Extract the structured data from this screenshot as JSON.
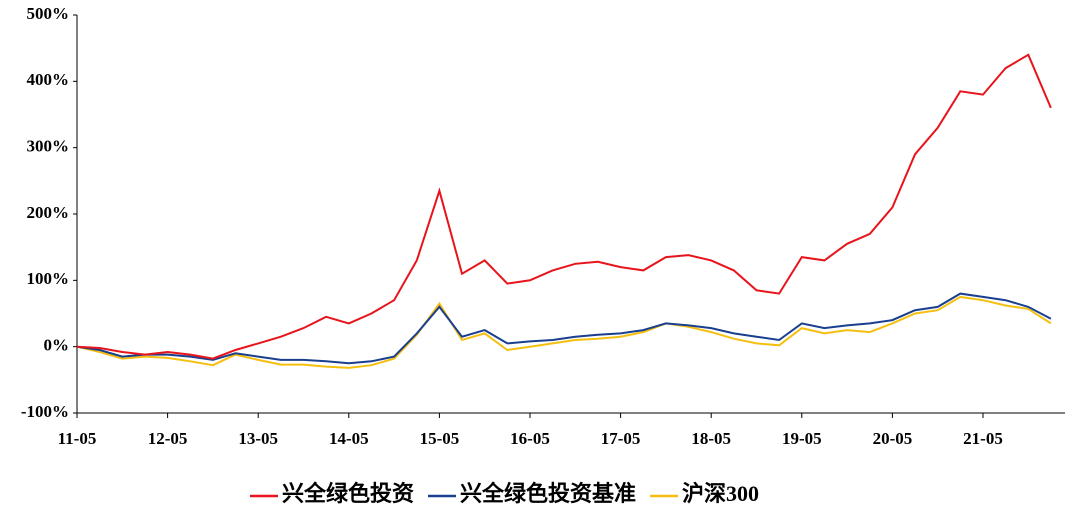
{
  "chart_data": {
    "type": "line",
    "categories": [
      "11-05",
      null,
      null,
      null,
      "12-05",
      null,
      null,
      null,
      "13-05",
      null,
      null,
      null,
      "14-05",
      null,
      null,
      null,
      "15-05",
      null,
      null,
      null,
      "16-05",
      null,
      null,
      null,
      "17-05",
      null,
      null,
      null,
      "18-05",
      null,
      null,
      null,
      "19-05",
      null,
      null,
      null,
      "20-05",
      null,
      null,
      null,
      "21-05",
      null,
      null,
      null
    ],
    "series": [
      {
        "name": "兴全绿色投资",
        "color": "#e8141c",
        "values": [
          0,
          -2,
          -8,
          -12,
          -8,
          -12,
          -18,
          -5,
          5,
          15,
          28,
          45,
          35,
          50,
          70,
          130,
          235,
          110,
          130,
          95,
          100,
          115,
          125,
          128,
          120,
          115,
          135,
          138,
          130,
          115,
          85,
          80,
          135,
          130,
          155,
          170,
          210,
          290,
          330,
          385,
          380,
          420,
          440,
          360
        ]
      },
      {
        "name": "兴全绿色投资基准",
        "color": "#1a3f8f",
        "values": [
          0,
          -5,
          -15,
          -12,
          -12,
          -15,
          -20,
          -10,
          -15,
          -20,
          -20,
          -22,
          -25,
          -22,
          -15,
          20,
          60,
          15,
          25,
          5,
          8,
          10,
          15,
          18,
          20,
          25,
          35,
          32,
          28,
          20,
          15,
          10,
          35,
          28,
          32,
          35,
          40,
          55,
          60,
          80,
          75,
          70,
          60,
          42
        ]
      },
      {
        "name": "沪深300",
        "color": "#f5bf10",
        "values": [
          0,
          -8,
          -18,
          -15,
          -17,
          -22,
          -28,
          -12,
          -20,
          -27,
          -27,
          -30,
          -32,
          -28,
          -18,
          18,
          65,
          10,
          20,
          -5,
          0,
          5,
          10,
          12,
          15,
          22,
          35,
          30,
          22,
          12,
          5,
          2,
          28,
          20,
          25,
          22,
          35,
          50,
          55,
          75,
          70,
          62,
          57,
          35
        ]
      }
    ],
    "ylim": [
      -100,
      500
    ],
    "yticks": [
      {
        "value": -100,
        "label": "-100%"
      },
      {
        "value": 0,
        "label": "0%"
      },
      {
        "value": 100,
        "label": "100%"
      },
      {
        "value": 200,
        "label": "200%"
      },
      {
        "value": 300,
        "label": "300%"
      },
      {
        "value": 400,
        "label": "400%"
      },
      {
        "value": 500,
        "label": "500%"
      }
    ],
    "legend": "bottom"
  }
}
